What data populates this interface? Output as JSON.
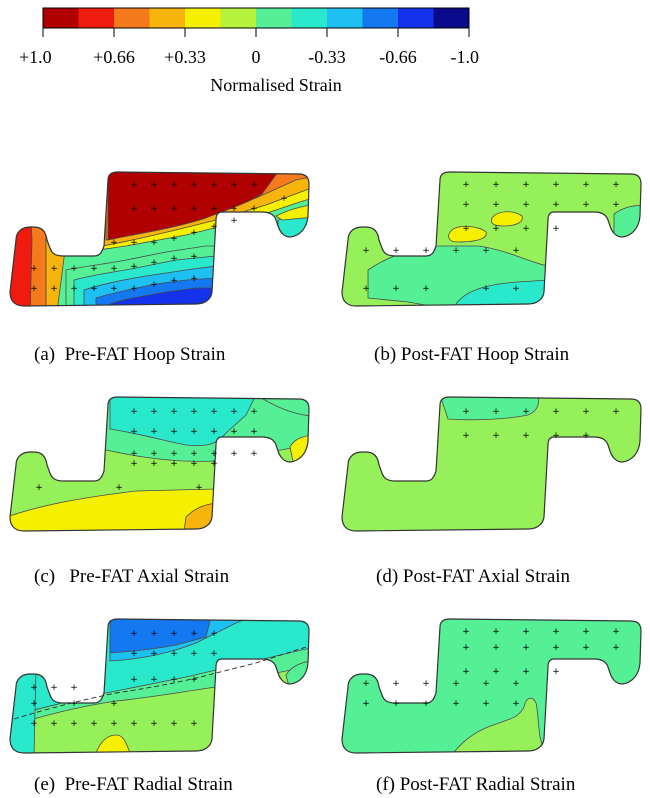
{
  "colors": {
    "c_p100": "#b00000",
    "c_p83": "#ee1b0e",
    "c_p66": "#f57a1c",
    "c_p50": "#f6b40c",
    "c_p33": "#f4f000",
    "c_p16": "#b6f23e",
    "c_0": "#96f05a",
    "c_m16": "#55f096",
    "c_m33": "#2ae8cc",
    "c_m50": "#1ec0f2",
    "c_m66": "#1478f0",
    "c_m83": "#1432ec",
    "c_m100": "#0a0a8c"
  },
  "scale": {
    "swatches": [
      "c_p100",
      "c_p83",
      "c_p66",
      "c_p50",
      "c_p33",
      "c_p16",
      "c_m16",
      "c_m33",
      "c_m50",
      "c_m66",
      "c_m83",
      "c_m100"
    ],
    "ticks": [
      "+1.0",
      "+0.66",
      "+0.33",
      "0",
      "-0.33",
      "-0.66",
      "-1.0"
    ],
    "title": "Normalised Strain"
  },
  "panels": [
    {
      "caption": "(a)  Pre-FAT Hoop Strain"
    },
    {
      "caption": "(b) Post-FAT Hoop Strain"
    },
    {
      "caption": "(c)   Pre-FAT Axial Strain"
    },
    {
      "caption": "(d) Post-FAT Axial Strain"
    },
    {
      "caption": "(e)  Pre-FAT Radial Strain"
    },
    {
      "caption": "(f) Post-FAT Radial Strain"
    }
  ]
}
